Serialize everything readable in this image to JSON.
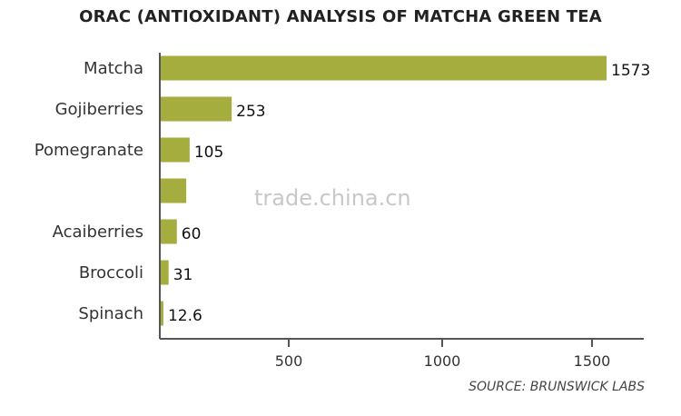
{
  "chart_data": {
    "type": "bar",
    "orientation": "horizontal",
    "title": "ORAC (ANTIOXIDANT) ANALYSIS OF MATCHA GREEN TEA",
    "categories": [
      "Matcha",
      "Gojiberries",
      "Pomegranate",
      "",
      "Acaiberries",
      "Broccoli",
      "Spinach"
    ],
    "values": [
      1573,
      253,
      105,
      93,
      60,
      31,
      12.6
    ],
    "data_labels": [
      "1573",
      "253",
      "105",
      "",
      "60",
      "31",
      "12.6"
    ],
    "xticks": [
      500,
      1000,
      1500
    ],
    "xlim": [
      0,
      1700
    ],
    "grid": false,
    "bar_color": "#a4ad3d",
    "source": "SOURCE: BRUNSWICK LABS"
  },
  "watermark": "trade.china.cn"
}
